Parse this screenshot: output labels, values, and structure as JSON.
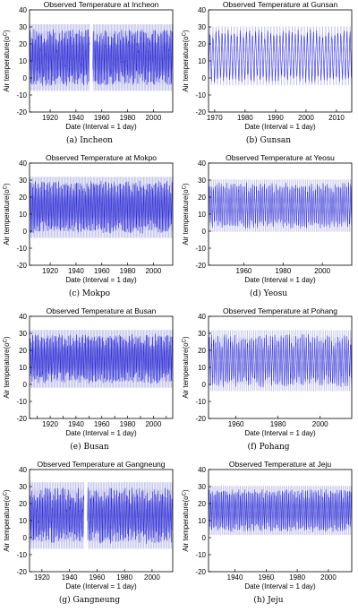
{
  "chart_data": [
    {
      "type": "line",
      "title": "Observed Temperature at Incheon",
      "caption": "(a)  Incheon",
      "xlabel": "Date (Interval = 1 day)",
      "ylabel": "Air temperature(o",
      "ylabel_unit": "C",
      "ylabel_close": ")",
      "xlim": [
        1904,
        2015
      ],
      "ylim": [
        -20,
        40
      ],
      "xticks": [
        1920,
        1940,
        1960,
        1980,
        2000
      ],
      "yticks": [
        -20,
        -10,
        0,
        10,
        20,
        30,
        40
      ],
      "grid": false,
      "gaps": [
        [
          1950.5,
          1953
        ]
      ],
      "series": [
        {
          "values": {
            "mean": 12,
            "amplitude": 12,
            "noise": 5,
            "min": -16,
            "max": 33
          }
        }
      ]
    },
    {
      "type": "line",
      "title": "Observed Temperature at Gunsan",
      "caption": "(b)  Gunsan",
      "xlabel": "Date (Interval = 1 day)",
      "ylabel": "Air temperature(o",
      "ylabel_unit": "C",
      "ylabel_close": ")",
      "xlim": [
        1968,
        2015
      ],
      "ylim": [
        -20,
        40
      ],
      "xticks": [
        1970,
        1980,
        1990,
        2000,
        2010
      ],
      "yticks": [
        -20,
        -10,
        0,
        10,
        20,
        30,
        40
      ],
      "grid": false,
      "gaps": [],
      "series": [
        {
          "values": {
            "mean": 13,
            "amplitude": 13,
            "noise": 3,
            "min": -12,
            "max": 33
          }
        }
      ]
    },
    {
      "type": "line",
      "title": "Observed Temperature at Mokpo",
      "caption": "(c)  Mokpo",
      "xlabel": "Date (Interval = 1 day)",
      "ylabel": "Air temperature(o",
      "ylabel_unit": "C",
      "ylabel_close": ")",
      "xlim": [
        1904,
        2015
      ],
      "ylim": [
        -20,
        40
      ],
      "xticks": [
        1920,
        1940,
        1960,
        1980,
        2000
      ],
      "yticks": [
        -20,
        -10,
        0,
        10,
        20,
        30,
        40
      ],
      "grid": false,
      "gaps": [],
      "series": [
        {
          "values": {
            "mean": 14,
            "amplitude": 12,
            "noise": 4,
            "min": -12,
            "max": 34
          }
        }
      ]
    },
    {
      "type": "line",
      "title": "Observed Temperature at Yeosu",
      "caption": "(d)  Yeosu",
      "xlabel": "Date (Interval = 1 day)",
      "ylabel": "Air temperature(o",
      "ylabel_unit": "C",
      "ylabel_close": ")",
      "xlim": [
        1942,
        2015
      ],
      "ylim": [
        -20,
        40
      ],
      "xticks": [
        1960,
        1980,
        2000
      ],
      "yticks": [
        -20,
        -10,
        0,
        10,
        20,
        30,
        40
      ],
      "grid": false,
      "gaps": [],
      "series": [
        {
          "values": {
            "mean": 15,
            "amplitude": 11,
            "noise": 3,
            "min": -10,
            "max": 34
          }
        }
      ]
    },
    {
      "type": "line",
      "title": "Observed Temperature at Busan",
      "caption": "(e)  Busan",
      "xlabel": "Date (Interval = 1 day)",
      "ylabel": "Air temperature(o",
      "ylabel_unit": "C",
      "ylabel_close": ")",
      "xlim": [
        1904,
        2015
      ],
      "ylim": [
        -20,
        40
      ],
      "xticks": [
        1910,
        1920,
        1930,
        1940,
        1950,
        1960,
        1970,
        1980,
        1990,
        2000,
        2010
      ],
      "xticks_labeled": [
        1920,
        1940,
        1960,
        1980,
        2000
      ],
      "yticks": [
        -20,
        -10,
        0,
        10,
        20,
        30,
        40
      ],
      "grid": false,
      "gaps": [],
      "series": [
        {
          "values": {
            "mean": 15,
            "amplitude": 11,
            "noise": 4,
            "min": -13,
            "max": 34
          }
        }
      ]
    },
    {
      "type": "line",
      "title": "Observed Temperature at Pohang",
      "caption": "(f)  Pohang",
      "xlabel": "Date (Interval = 1 day)",
      "ylabel": "Air temperature(o",
      "ylabel_unit": "C",
      "ylabel_close": ")",
      "xlim": [
        1947,
        2015
      ],
      "ylim": [
        -20,
        40
      ],
      "xticks": [
        1960,
        1980,
        2000
      ],
      "yticks": [
        -20,
        -10,
        0,
        10,
        20,
        30,
        40
      ],
      "grid": false,
      "gaps": [],
      "series": [
        {
          "values": {
            "mean": 14,
            "amplitude": 12,
            "noise": 4,
            "min": -12,
            "max": 37
          }
        }
      ]
    },
    {
      "type": "line",
      "title": "Observed Temperature at Gangneung",
      "caption": "(g)  Gangneung",
      "xlabel": "Date (Interval = 1 day)",
      "ylabel": "Air temperature(o",
      "ylabel_unit": "C",
      "ylabel_close": ")",
      "xlim": [
        1911,
        2015
      ],
      "ylim": [
        -20,
        40
      ],
      "xticks": [
        1920,
        1940,
        1960,
        1980,
        2000
      ],
      "yticks": [
        -20,
        -10,
        0,
        10,
        20,
        30,
        40
      ],
      "grid": false,
      "gaps": [
        [
          1950.5,
          1953
        ]
      ],
      "series": [
        {
          "values": {
            "mean": 13,
            "amplitude": 12,
            "noise": 5,
            "min": -17,
            "max": 36
          }
        }
      ]
    },
    {
      "type": "line",
      "title": "Observed Temperature at Jeju",
      "caption": "(h)  Jeju",
      "xlabel": "Date (Interval = 1 day)",
      "ylabel": "Air temperature(o",
      "ylabel_unit": "C",
      "ylabel_close": ")",
      "xlim": [
        1923,
        2015
      ],
      "ylim": [
        -20,
        40
      ],
      "xticks": [
        1940,
        1960,
        1980,
        2000
      ],
      "yticks": [
        -20,
        -10,
        0,
        10,
        20,
        30,
        40
      ],
      "grid": false,
      "gaps": [],
      "series": [
        {
          "values": {
            "mean": 16,
            "amplitude": 10,
            "noise": 3,
            "min": -7,
            "max": 37
          }
        }
      ]
    }
  ],
  "colors": {
    "series": "#2a2ad8",
    "band": "#b8b8e8",
    "axis": "#000000"
  }
}
